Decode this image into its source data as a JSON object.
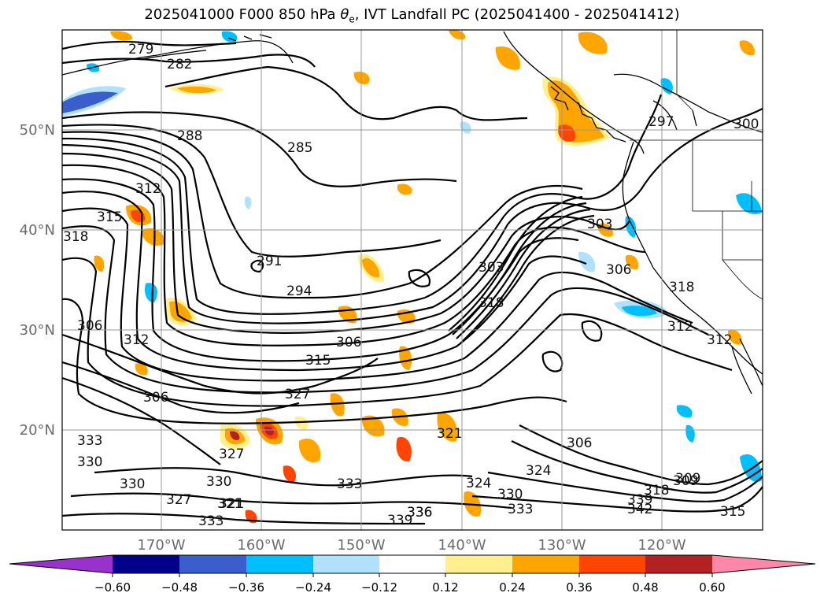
{
  "title": {
    "prefix": "2025041000 F000 850 hPa ",
    "theta": "θ",
    "sub": "e",
    "suffix": ", IVT Landfall PC (2025041400 - 2025041412)"
  },
  "axes": {
    "lat_labels": [
      "50°N",
      "40°N",
      "30°N",
      "20°N"
    ],
    "lon_labels": [
      "170°W",
      "160°W",
      "150°W",
      "140°W",
      "130°W",
      "120°W"
    ]
  },
  "colorbar": {
    "colors": [
      "#9932cc",
      "#00008b",
      "#3a5fcd",
      "#00bfff",
      "#b0e2ff",
      "#ffffff",
      "#fff08f",
      "#ffa500",
      "#ff4500",
      "#b22222",
      "#ff88aa"
    ],
    "tick_labels": [
      "−0.60",
      "−0.48",
      "−0.36",
      "−0.24",
      "−0.12",
      "0.12",
      "0.24",
      "0.36",
      "0.48",
      "0.60"
    ],
    "extend": "both"
  },
  "contour_labels": [
    "279",
    "282",
    "285",
    "288",
    "291",
    "294",
    "297",
    "300",
    "303",
    "306",
    "309",
    "312",
    "315",
    "318",
    "321",
    "324",
    "327",
    "330",
    "333",
    "336",
    "339",
    "342",
    "306",
    "315",
    "318",
    "312",
    "318",
    "306",
    "321",
    "330",
    "333",
    "327",
    "324",
    "330",
    "336",
    "333",
    "339",
    "309",
    "312",
    "315",
    "318",
    "327",
    "321",
    "330",
    "333",
    "306",
    "303",
    "306",
    "312"
  ]
}
